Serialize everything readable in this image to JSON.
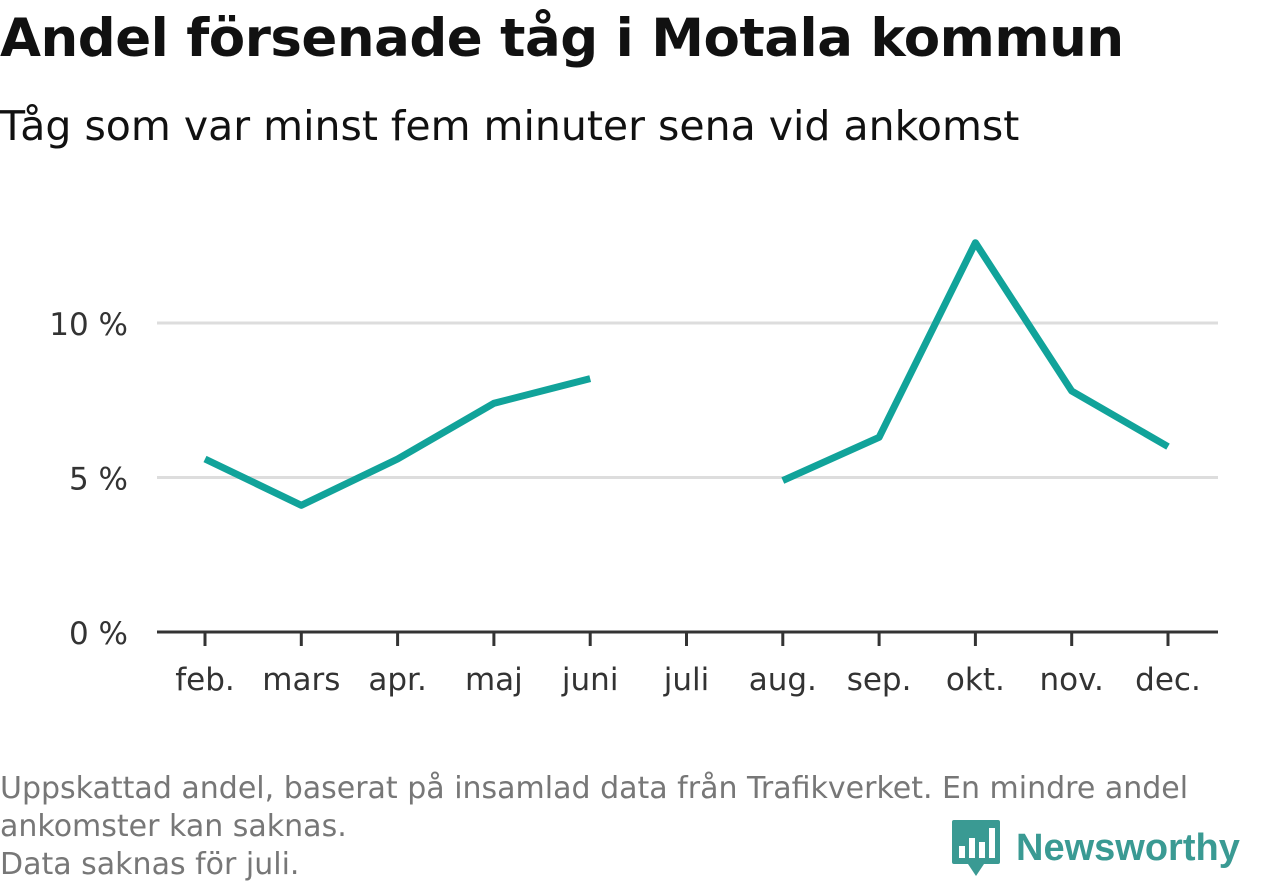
{
  "title": "Andel försenade tåg i Motala kommun",
  "subtitle": "Tåg som var minst fem minuter sena vid ankomst",
  "footnote": {
    "line1": "Uppskattad andel, baserat på insamlad data från Trafikverket. En mindre andel",
    "line2": "ankomster kan saknas.",
    "line3": "Data saknas för juli."
  },
  "logo": {
    "text": "Newsworthy",
    "color": "#3a9a93",
    "icon": "bar-chart-speech-bubble-icon"
  },
  "chart_data": {
    "type": "line",
    "title": "Andel försenade tåg i Motala kommun",
    "subtitle": "Tåg som var minst fem minuter sena vid ankomst",
    "categories": [
      "feb.",
      "mars",
      "apr.",
      "maj",
      "juni",
      "juli",
      "aug.",
      "sep.",
      "okt.",
      "nov.",
      "dec."
    ],
    "series": [
      {
        "values": [
          5.6,
          4.1,
          5.6,
          7.4,
          8.2,
          null,
          4.9,
          6.3,
          12.6,
          7.8,
          6.0
        ],
        "color": "#11a39a"
      }
    ],
    "yticks": [
      0,
      5,
      10
    ],
    "ytick_labels": [
      "0 %",
      "5 %",
      "10 %"
    ],
    "ylim": [
      0,
      14
    ],
    "grid": true,
    "legend": "none"
  }
}
